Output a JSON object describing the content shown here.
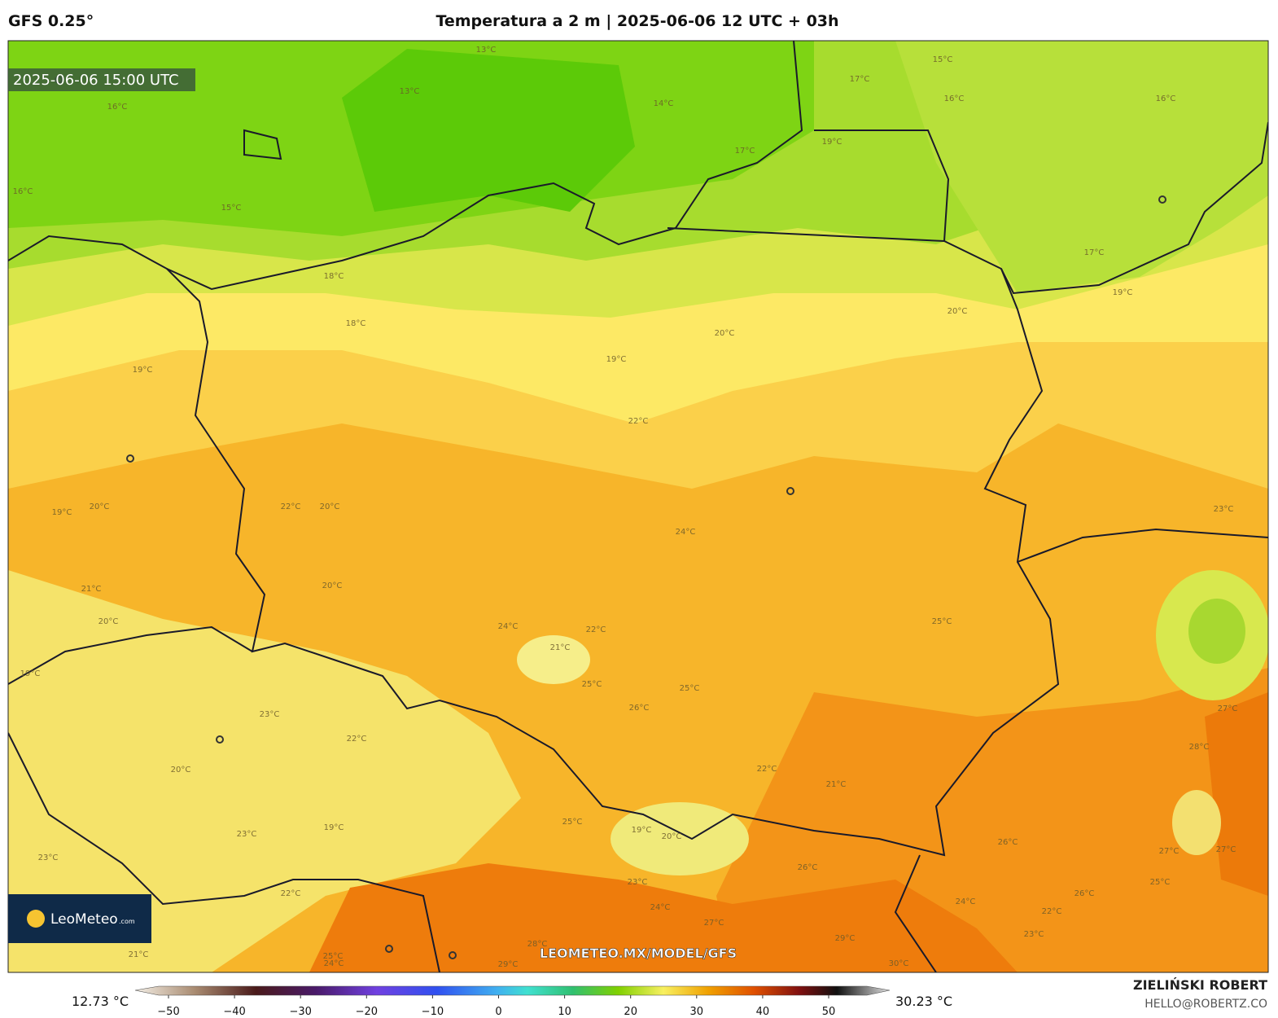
{
  "header": {
    "model": "GFS 0.25°",
    "title": "Temperatura a 2 m | 2025-06-06 12 UTC + 03h"
  },
  "map": {
    "valid_time": "2025-06-06 15:00 UTC",
    "logo": "LeoMeteo",
    "logo_suffix": ".com",
    "url": "LEOMETEO.MX/MODEL/GFS",
    "contour_labels": [
      "13°C",
      "15°C",
      "17°C",
      "16°C",
      "16°C",
      "14°C",
      "13°C",
      "16°C",
      "15°C",
      "16°C",
      "17°C",
      "19°C",
      "17°C",
      "18°C",
      "18°C",
      "20°C",
      "19°C",
      "20°C",
      "19°C",
      "19°C",
      "22°C",
      "19°C",
      "20°C",
      "22°C",
      "20°C",
      "24°C",
      "23°C",
      "21°C",
      "20°C",
      "20°C",
      "24°C",
      "22°C",
      "21°C",
      "25°C",
      "19°C",
      "25°C",
      "26°C",
      "25°C",
      "23°C",
      "22°C",
      "27°C",
      "28°C",
      "20°C",
      "22°C",
      "21°C",
      "25°C",
      "19°C",
      "20°C",
      "23°C",
      "19°C",
      "26°C",
      "26°C",
      "27°C",
      "27°C",
      "23°C",
      "24°C",
      "25°C",
      "26°C",
      "24°C",
      "22°C",
      "23°C",
      "27°C",
      "28°C",
      "29°C",
      "29°C",
      "30°C",
      "22°C",
      "23°C",
      "21°C",
      "25°C",
      "24°C"
    ]
  },
  "colorbar": {
    "min_label": "12.73 °C",
    "max_label": "30.23 °C",
    "ticks": [
      "−50",
      "−40",
      "−30",
      "−20",
      "−10",
      "0",
      "10",
      "20",
      "30",
      "40",
      "50"
    ]
  },
  "footer": {
    "author": "ZIELIŃSKI ROBERT",
    "email": "HELLO@ROBERTZ.CO"
  }
}
